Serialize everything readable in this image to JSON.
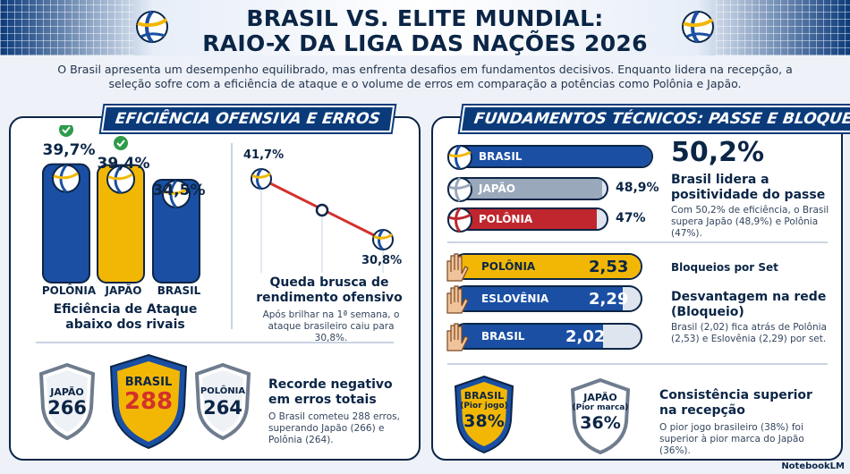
{
  "header": {
    "title_line1": "BRASIL VS. ELITE MUNDIAL:",
    "title_line2": "RAIO-X DA LIGA DAS NAÇÕES 2026",
    "intro": "O Brasil apresenta um desempenho equilibrado, mas enfrenta desafios em fundamentos decisivos. Enquanto lidera na recepção, a seleção sofre com a eficiência de ataque e o volume de erros em comparação a potências como Polônia e Japão."
  },
  "left_panel": {
    "title": "EFICIÊNCIA OFENSIVA E ERROS",
    "attack": {
      "bars": [
        {
          "team": "POLÔNIA",
          "value_label": "39,7%",
          "value": 39.7,
          "check": true,
          "color": "#1a4fa3"
        },
        {
          "team": "JAPÃO",
          "value_label": "39,4%",
          "value": 39.4,
          "check": true,
          "color": "#f2b705"
        },
        {
          "team": "BRASIL",
          "value_label": "34,5%",
          "value": 34.5,
          "check": false,
          "color": "#1a4fa3"
        }
      ],
      "caption": "Eficiência de Ataque abaixo dos rivais"
    },
    "drop": {
      "start_label": "41,7%",
      "end_label": "30,8%",
      "heading": "Queda brusca de rendimento ofensivo",
      "text": "Após brilhar na 1ª semana, o ataque brasileiro caiu para 30,8%."
    },
    "errors": {
      "shields": [
        {
          "team": "JAPÃO",
          "value": "266"
        },
        {
          "team": "BRASIL",
          "value": "288"
        },
        {
          "team": "POLÔNIA",
          "value": "264"
        }
      ],
      "heading": "Recorde negativo em erros totais",
      "text": "O Brasil cometeu 288 erros, superando Japão (266) e Polônia (264)."
    }
  },
  "right_panel": {
    "title": "FUNDAMENTOS TÉCNICOS: PASSE E BLOQUEIO",
    "reception": {
      "rows": [
        {
          "team": "BRASIL",
          "value_label": "",
          "value": 50.2,
          "color": "#1a4fa3"
        },
        {
          "team": "JAPÃO",
          "value_label": "48,9%",
          "value": 48.9,
          "color": "#9aa8bb"
        },
        {
          "team": "POLÔNIA",
          "value_label": "47%",
          "value": 47,
          "color": "#c0262d"
        }
      ],
      "big": "50,2%",
      "heading": "Brasil lidera a positividade do passe",
      "text": "Com 50,2% de eficiência, o Brasil supera Japão (48,9%) e Polônia (47%)."
    },
    "blocks": {
      "rows": [
        {
          "team": "POLÔNIA",
          "value": "2,53",
          "num": 2.53,
          "color": "#f2b705",
          "label_color": "#0b2546"
        },
        {
          "team": "ESLOVÊNIA",
          "value": "2,29",
          "num": 2.29,
          "color": "#1a4fa3",
          "label_color": "#ffffff"
        },
        {
          "team": "BRASIL",
          "value": "2,02",
          "num": 2.02,
          "color": "#1a4fa3",
          "label_color": "#ffffff"
        }
      ],
      "subtitle": "Bloqueios por Set",
      "heading": "Desvantagem na rede (Bloqueio)",
      "text": "Brasil (2,02) fica atrás de Polônia (2,53) e Eslovênia (2,29) por set."
    },
    "consistency": {
      "badges": [
        {
          "team": "BRASIL",
          "note": "(Pior jogo)",
          "value": "38%"
        },
        {
          "team": "JAPÃO",
          "note": "(Pior marca)",
          "value": "36%"
        }
      ],
      "heading": "Consistência superior na recepção",
      "text": "O pior jogo brasileiro (38%) foi superior à pior marca do Japão (36%)."
    }
  },
  "footer": {
    "brand": "NotebookLM"
  }
}
